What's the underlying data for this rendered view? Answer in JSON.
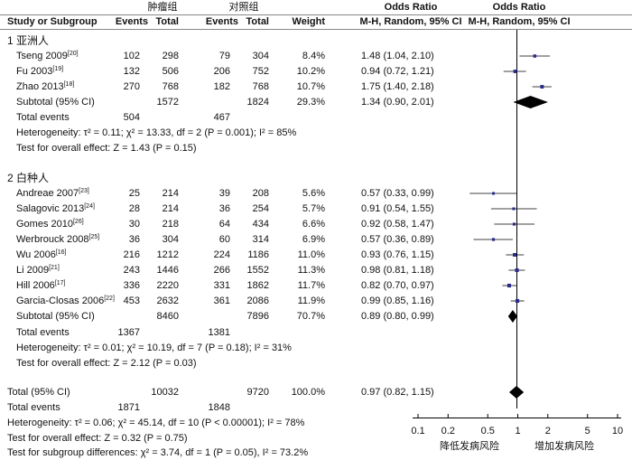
{
  "header": {
    "group1": "肿瘤组",
    "group2": "对照组",
    "or_text": "Odds Ratio",
    "or_plot": "Odds Ratio",
    "study": "Study or Subgroup",
    "events1": "Events",
    "total1": "Total",
    "events2": "Events",
    "total2": "Total",
    "weight": "Weight",
    "method_text": "M-H, Random, 95% CI",
    "method_plot": "M-H, Random, 95% CI"
  },
  "subgroups": [
    {
      "title": "1 亚洲人",
      "studies": [
        {
          "name": "Tseng 2009",
          "ref": "[20]",
          "e1": "102",
          "t1": "298",
          "e2": "79",
          "t2": "304",
          "w": "8.4%",
          "ci": "1.48 (1.04, 2.10)"
        },
        {
          "name": "Fu 2003",
          "ref": "[19]",
          "e1": "132",
          "t1": "506",
          "e2": "206",
          "t2": "752",
          "w": "10.2%",
          "ci": "0.94 (0.72, 1.21)"
        },
        {
          "name": "Zhao 2013",
          "ref": "[18]",
          "e1": "270",
          "t1": "768",
          "e2": "182",
          "t2": "768",
          "w": "10.7%",
          "ci": "1.75 (1.40, 2.18)"
        }
      ],
      "subtotal": {
        "label": "Subtotal (95% CI)",
        "t1": "1572",
        "t2": "1824",
        "w": "29.3%",
        "ci": "1.34 (0.90, 2.01)"
      },
      "total_events": {
        "label": "Total events",
        "e1": "504",
        "e2": "467"
      },
      "heterogeneity": "Heterogeneity: τ² = 0.11; χ² = 13.33, df = 2 (P = 0.001); I² = 85%",
      "overall": "Test for overall effect: Z = 1.43 (P = 0.15)"
    },
    {
      "title": "2 白种人",
      "studies": [
        {
          "name": "Andreae 2007",
          "ref": "[23]",
          "e1": "25",
          "t1": "214",
          "e2": "39",
          "t2": "208",
          "w": "5.6%",
          "ci": "0.57 (0.33, 0.99)"
        },
        {
          "name": "Salagovic 2013",
          "ref": "[24]",
          "e1": "28",
          "t1": "214",
          "e2": "36",
          "t2": "254",
          "w": "5.7%",
          "ci": "0.91 (0.54, 1.55)"
        },
        {
          "name": "Gomes 2010",
          "ref": "[26]",
          "e1": "30",
          "t1": "218",
          "e2": "64",
          "t2": "434",
          "w": "6.6%",
          "ci": "0.92 (0.58, 1.47)"
        },
        {
          "name": "Werbrouck 2008",
          "ref": "[25]",
          "e1": "36",
          "t1": "304",
          "e2": "60",
          "t2": "314",
          "w": "6.9%",
          "ci": "0.57 (0.36, 0.89)"
        },
        {
          "name": "Wu 2006",
          "ref": "[16]",
          "e1": "216",
          "t1": "1212",
          "e2": "224",
          "t2": "1186",
          "w": "11.0%",
          "ci": "0.93 (0.76, 1.15)"
        },
        {
          "name": "Li 2009",
          "ref": "[21]",
          "e1": "243",
          "t1": "1446",
          "e2": "266",
          "t2": "1552",
          "w": "11.3%",
          "ci": "0.98 (0.81, 1.18)"
        },
        {
          "name": "Hill 2006",
          "ref": "[17]",
          "e1": "336",
          "t1": "2220",
          "e2": "331",
          "t2": "1862",
          "w": "11.7%",
          "ci": "0.82 (0.70, 0.97)"
        },
        {
          "name": "Garcia-Closas 2006",
          "ref": "[22]",
          "e1": "453",
          "t1": "2632",
          "e2": "361",
          "t2": "2086",
          "w": "11.9%",
          "ci": "0.99 (0.85, 1.16)"
        }
      ],
      "subtotal": {
        "label": "Subtotal (95% CI)",
        "t1": "8460",
        "t2": "7896",
        "w": "70.7%",
        "ci": "0.89 (0.80, 0.99)"
      },
      "total_events": {
        "label": "Total events",
        "e1": "1367",
        "e2": "1381"
      },
      "heterogeneity": "Heterogeneity: τ² = 0.01; χ² = 10.19, df = 7 (P = 0.18); I² = 31%",
      "overall": "Test for overall effect: Z = 2.12 (P = 0.03)"
    }
  ],
  "total": {
    "label": "Total (95% CI)",
    "t1": "10032",
    "t2": "9720",
    "w": "100.0%",
    "ci": "0.97 (0.82, 1.15)"
  },
  "total_events": {
    "label": "Total events",
    "e1": "1871",
    "e2": "1848"
  },
  "total_heterogeneity": "Heterogeneity: τ² = 0.06; χ² = 45.14, df = 10 (P < 0.00001); I² = 78%",
  "total_overall": "Test for overall effect: Z = 0.32 (P = 0.75)",
  "subgroup_diff": "Test for subgroup differences: χ² = 3.74, df = 1 (P = 0.05), I² = 73.2%",
  "axis": {
    "ticks": [
      "0.1",
      "0.2",
      "0.5",
      "1",
      "2",
      "5",
      "10"
    ],
    "favours_left": "降低发病风险",
    "favours_right": "增加发病风险"
  },
  "colors": {
    "square": "#2b2b8c",
    "diamond": "#000000",
    "line": "#000000",
    "rule": "#888888"
  },
  "chart_data": {
    "type": "scatter",
    "scale": "log",
    "xlim": [
      0.1,
      10
    ],
    "reference_line": 1,
    "studies": [
      {
        "name": "Tseng 2009",
        "or": 1.48,
        "lo": 1.04,
        "hi": 2.1,
        "weight": 8.4
      },
      {
        "name": "Fu 2003",
        "or": 0.94,
        "lo": 0.72,
        "hi": 1.21,
        "weight": 10.2
      },
      {
        "name": "Zhao 2013",
        "or": 1.75,
        "lo": 1.4,
        "hi": 2.18,
        "weight": 10.7
      },
      {
        "name": "Andreae 2007",
        "or": 0.57,
        "lo": 0.33,
        "hi": 0.99,
        "weight": 5.6
      },
      {
        "name": "Salagovic 2013",
        "or": 0.91,
        "lo": 0.54,
        "hi": 1.55,
        "weight": 5.7
      },
      {
        "name": "Gomes 2010",
        "or": 0.92,
        "lo": 0.58,
        "hi": 1.47,
        "weight": 6.6
      },
      {
        "name": "Werbrouck 2008",
        "or": 0.57,
        "lo": 0.36,
        "hi": 0.89,
        "weight": 6.9
      },
      {
        "name": "Wu 2006",
        "or": 0.93,
        "lo": 0.76,
        "hi": 1.15,
        "weight": 11.0
      },
      {
        "name": "Li 2009",
        "or": 0.98,
        "lo": 0.81,
        "hi": 1.18,
        "weight": 11.3
      },
      {
        "name": "Hill 2006",
        "or": 0.82,
        "lo": 0.7,
        "hi": 0.97,
        "weight": 11.7
      },
      {
        "name": "Garcia-Closas 2006",
        "or": 0.99,
        "lo": 0.85,
        "hi": 1.16,
        "weight": 11.9
      }
    ],
    "diamonds": [
      {
        "name": "Subtotal 1",
        "or": 1.34,
        "lo": 0.9,
        "hi": 2.01
      },
      {
        "name": "Subtotal 2",
        "or": 0.89,
        "lo": 0.8,
        "hi": 0.99
      },
      {
        "name": "Total",
        "or": 0.97,
        "lo": 0.82,
        "hi": 1.15
      }
    ]
  }
}
